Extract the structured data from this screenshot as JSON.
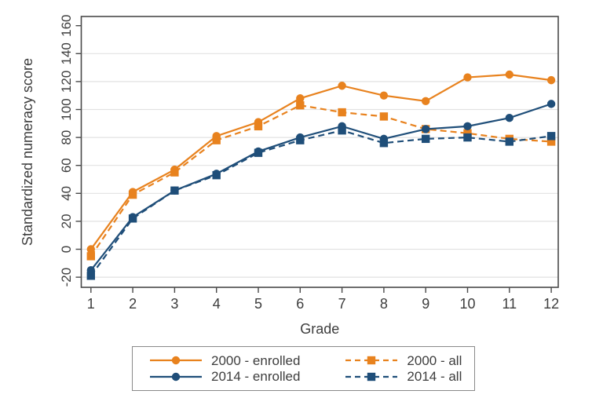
{
  "figure": {
    "background": "#ffffff",
    "plot_border_color": "#4a4a4a",
    "grid_color": "#e2e2e2",
    "text_color": "#3d3d3d",
    "orange": "#E8821E",
    "navy": "#1F4E79"
  },
  "chart_data": {
    "type": "line",
    "title": "",
    "xlabel": "Grade",
    "ylabel": "Standardized numeracy score",
    "x": [
      1,
      2,
      3,
      4,
      5,
      6,
      7,
      8,
      9,
      10,
      11,
      12
    ],
    "x_tick_labels": [
      "1",
      "2",
      "3",
      "4",
      "5",
      "6",
      "7",
      "8",
      "9",
      "10",
      "11",
      "12"
    ],
    "y_ticks": [
      -20,
      0,
      20,
      40,
      60,
      80,
      100,
      120,
      140,
      160
    ],
    "ylim": [
      -28,
      167
    ],
    "grid": "horizontal",
    "legend_position": "bottom",
    "series": [
      {
        "name": "2000 - enrolled",
        "color": "#E8821E",
        "line": "solid",
        "marker": "circle",
        "values": [
          0,
          41,
          57,
          81,
          91,
          108,
          117,
          110,
          106,
          123,
          125,
          121
        ]
      },
      {
        "name": "2000 - all",
        "color": "#E8821E",
        "line": "dashed",
        "marker": "square",
        "values": [
          -5,
          39,
          55,
          78,
          88,
          103,
          98,
          95,
          86,
          83,
          79,
          77
        ]
      },
      {
        "name": "2014 - enrolled",
        "color": "#1F4E79",
        "line": "solid",
        "marker": "circle",
        "values": [
          -15,
          23,
          42,
          54,
          70,
          80,
          88,
          79,
          86,
          88,
          94,
          104
        ]
      },
      {
        "name": "2014 - all",
        "color": "#1F4E79",
        "line": "dashed",
        "marker": "square",
        "values": [
          -19,
          22,
          42,
          53,
          69,
          78,
          85,
          76,
          79,
          80,
          77,
          81
        ]
      }
    ]
  }
}
